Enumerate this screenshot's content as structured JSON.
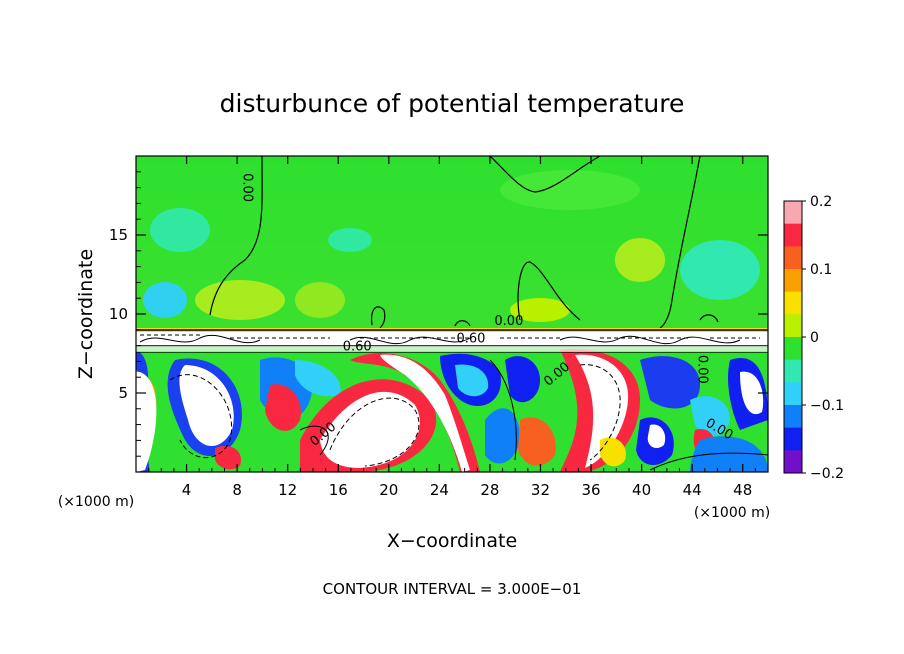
{
  "chart_data": {
    "type": "heatmap",
    "title": "disturbunce of potential temperature",
    "xlabel": "X−coordinate",
    "ylabel": "Z−coordinate",
    "x_unit_left": "(×1000 m)",
    "x_unit_right": "(×1000 m)",
    "xlim": [
      0,
      50
    ],
    "ylim": [
      0,
      20
    ],
    "x_ticks": [
      4,
      8,
      12,
      16,
      20,
      24,
      28,
      32,
      36,
      40,
      44,
      48
    ],
    "x_tick_labels": [
      "4",
      "8",
      "12",
      "16",
      "20",
      "24",
      "28",
      "32",
      "36",
      "40",
      "44",
      "48"
    ],
    "y_ticks": [
      5,
      10,
      15
    ],
    "y_tick_labels": [
      "5",
      "10",
      "15"
    ],
    "footer": "CONTOUR INTERVAL = 3.000E−01",
    "colorbar": {
      "range": [
        -0.2,
        0.2
      ],
      "tick_values": [
        0.2,
        0.1,
        0,
        -0.1,
        -0.2
      ],
      "tick_labels": [
        "0.2",
        "0.1",
        "0",
        "−0.1",
        "−0.2"
      ],
      "colors": [
        "#f8a8b0",
        "#f82840",
        "#f86020",
        "#f8a000",
        "#f8e000",
        "#b8f000",
        "#30e030",
        "#30e8b0",
        "#30d0f8",
        "#1080f8",
        "#1020f0",
        "#7010c8"
      ]
    },
    "contour_labels": [
      {
        "text": "0.00",
        "x": 8.5,
        "y": 18.0,
        "rotate": 90
      },
      {
        "text": "0.00",
        "x": 29.5,
        "y": 9.3,
        "rotate": 0
      },
      {
        "text": "0.60",
        "x": 26.5,
        "y": 8.2,
        "rotate": 0
      },
      {
        "text": "0.60",
        "x": 17.5,
        "y": 7.7,
        "rotate": 0
      },
      {
        "text": "0.00",
        "x": 33.5,
        "y": 6.0,
        "rotate": -40
      },
      {
        "text": "0.00",
        "x": 15.0,
        "y": 2.2,
        "rotate": -40
      },
      {
        "text": "0.00",
        "x": 46.0,
        "y": 2.5,
        "rotate": 30
      },
      {
        "text": "0.00",
        "x": 44.5,
        "y": 6.5,
        "rotate": 90
      }
    ]
  }
}
